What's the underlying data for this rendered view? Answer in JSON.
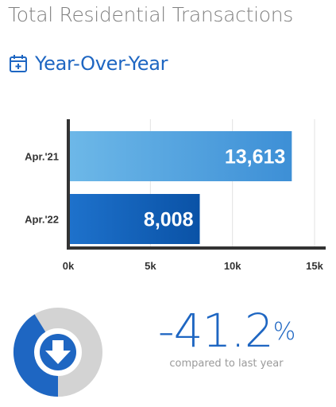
{
  "header": {
    "title": "Total Residential Transactions",
    "subtitle": "Year-Over-Year",
    "subtitle_icon": "calendar-plus-icon"
  },
  "chart_data": {
    "type": "bar",
    "orientation": "horizontal",
    "categories": [
      "Apr.'21",
      "Apr.'22"
    ],
    "values": [
      13613,
      8008
    ],
    "value_labels": [
      "13,613",
      "8,008"
    ],
    "x_ticks": [
      "0k",
      "5k",
      "10k",
      "15k"
    ],
    "xlim": [
      0,
      15000
    ],
    "grid": true,
    "colors": {
      "bar_1_light": "#6db8e8",
      "bar_1_dark": "#3d8fd6",
      "bar_2_light": "#1e72cc",
      "bar_2_dark": "#0a52a6",
      "axis": "#333333",
      "grid": "#e2e2e2"
    }
  },
  "summary": {
    "change_value": "-41.2",
    "change_unit": "%",
    "caption": "compared to last year",
    "indicator_icon": "arrow-down-icon",
    "donut_fraction": 0.412,
    "colors": {
      "accent": "#1e66c2",
      "ring_bg": "#d3d3d3"
    }
  }
}
